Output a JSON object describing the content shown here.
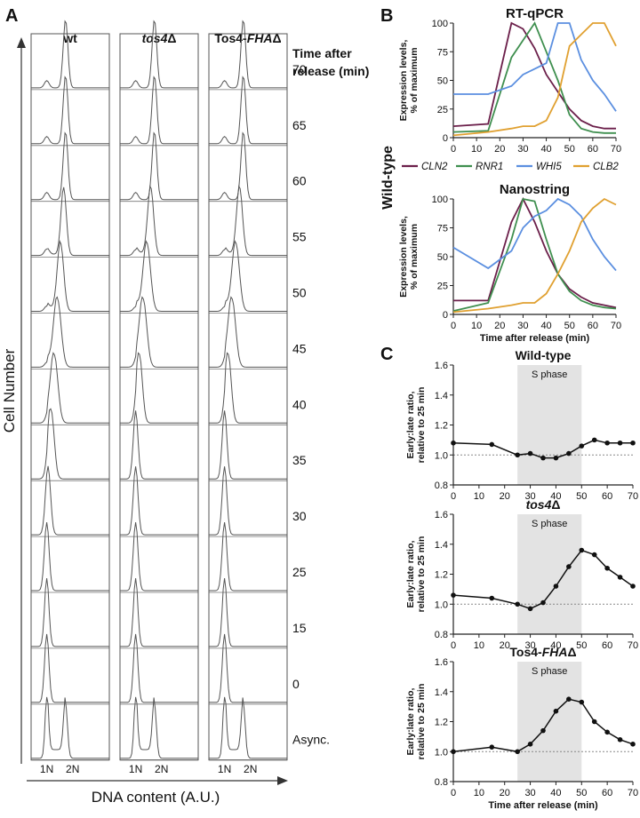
{
  "panels": {
    "A": {
      "letter": "A",
      "columns": [
        {
          "label_plain": "wt",
          "label_italic": "",
          "label_suffix": ""
        },
        {
          "label_plain": "",
          "label_italic": "tos4",
          "label_suffix": "Δ"
        },
        {
          "label_plain": "Tos4-",
          "label_italic": "FHA",
          "label_suffix": "Δ"
        }
      ],
      "time_header": [
        "Time after",
        "release (min)"
      ],
      "timepoints": [
        "70",
        "65",
        "60",
        "55",
        "50",
        "45",
        "40",
        "35",
        "30",
        "25",
        "15",
        "0",
        "Async."
      ],
      "ylabel": "Cell Number",
      "xlabel": "DNA content (A.U.)",
      "tick_1n": "1N",
      "tick_2n": "2N"
    },
    "B": {
      "letter": "B",
      "side_label": "Wild-type",
      "legend": [
        {
          "name": "CLN2",
          "color": "#6b1f4a"
        },
        {
          "name": "RNR1",
          "color": "#3f8f4f"
        },
        {
          "name": "WHI5",
          "color": "#5b8fe0"
        },
        {
          "name": "CLB2",
          "color": "#e0a030"
        }
      ]
    },
    "C": {
      "letter": "C",
      "shade_label": "S phase"
    }
  },
  "chart_data": [
    {
      "type": "line",
      "title": "RT-qPCR",
      "ylabel": "Expression levels, % of maximum",
      "xlabel": "",
      "xlim": [
        0,
        70
      ],
      "ylim": [
        0,
        100
      ],
      "xticks": [
        0,
        10,
        20,
        30,
        40,
        50,
        60,
        70
      ],
      "yticks": [
        0,
        25,
        50,
        75,
        100
      ],
      "x": [
        0,
        15,
        25,
        30,
        35,
        40,
        45,
        50,
        55,
        60,
        65,
        70
      ],
      "series": [
        {
          "name": "CLN2",
          "color": "#6b1f4a",
          "values": [
            10,
            12,
            100,
            95,
            78,
            55,
            40,
            25,
            15,
            10,
            8,
            8
          ]
        },
        {
          "name": "RNR1",
          "color": "#3f8f4f",
          "values": [
            5,
            6,
            70,
            85,
            100,
            75,
            50,
            20,
            8,
            5,
            4,
            4
          ]
        },
        {
          "name": "WHI5",
          "color": "#5b8fe0",
          "values": [
            38,
            38,
            45,
            55,
            60,
            65,
            100,
            100,
            68,
            50,
            38,
            23
          ]
        },
        {
          "name": "CLB2",
          "color": "#e0a030",
          "values": [
            2,
            5,
            8,
            10,
            10,
            15,
            35,
            80,
            90,
            100,
            100,
            80
          ]
        }
      ]
    },
    {
      "type": "line",
      "title": "Nanostring",
      "ylabel": "Expression levels, % of maximum",
      "xlabel": "Time after release (min)",
      "xlim": [
        0,
        70
      ],
      "ylim": [
        0,
        100
      ],
      "xticks": [
        0,
        10,
        20,
        30,
        40,
        50,
        60,
        70
      ],
      "yticks": [
        0,
        25,
        50,
        75,
        100
      ],
      "x": [
        0,
        15,
        25,
        30,
        35,
        40,
        45,
        50,
        55,
        60,
        65,
        70
      ],
      "series": [
        {
          "name": "CLN2",
          "color": "#6b1f4a",
          "values": [
            12,
            12,
            80,
            100,
            80,
            55,
            35,
            22,
            15,
            10,
            8,
            6
          ]
        },
        {
          "name": "RNR1",
          "color": "#3f8f4f",
          "values": [
            3,
            10,
            65,
            100,
            98,
            65,
            35,
            20,
            12,
            8,
            6,
            5
          ]
        },
        {
          "name": "WHI5",
          "color": "#5b8fe0",
          "values": [
            58,
            40,
            55,
            75,
            85,
            90,
            100,
            95,
            85,
            65,
            50,
            38
          ]
        },
        {
          "name": "CLB2",
          "color": "#e0a030",
          "values": [
            2,
            5,
            8,
            10,
            10,
            18,
            35,
            55,
            80,
            92,
            100,
            95
          ]
        }
      ]
    },
    {
      "type": "line",
      "title": "Wild-type",
      "ylabel": "Early:late ratio, relative to 25 min",
      "xlabel": "",
      "xlim": [
        0,
        70
      ],
      "ylim": [
        0.8,
        1.6
      ],
      "xticks": [
        0,
        10,
        20,
        30,
        40,
        50,
        60,
        70
      ],
      "yticks": [
        0.8,
        1.0,
        1.2,
        1.4,
        1.6
      ],
      "shade": [
        25,
        50
      ],
      "reference": 1.0,
      "x": [
        0,
        15,
        25,
        30,
        35,
        40,
        45,
        50,
        55,
        60,
        65,
        70
      ],
      "series": [
        {
          "values": [
            1.08,
            1.07,
            1.0,
            1.01,
            0.98,
            0.98,
            1.01,
            1.06,
            1.1,
            1.08,
            1.08,
            1.08
          ]
        }
      ]
    },
    {
      "type": "line",
      "title_italic": "tos4",
      "title_suffix": "Δ",
      "ylabel": "Early:late ratio, relative to 25 min",
      "xlabel": "",
      "xlim": [
        0,
        70
      ],
      "ylim": [
        0.8,
        1.6
      ],
      "xticks": [
        0,
        10,
        20,
        30,
        40,
        50,
        60,
        70
      ],
      "yticks": [
        0.8,
        1.0,
        1.2,
        1.4,
        1.6
      ],
      "shade": [
        25,
        50
      ],
      "reference": 1.0,
      "x": [
        0,
        15,
        25,
        30,
        35,
        40,
        45,
        50,
        55,
        60,
        65,
        70
      ],
      "series": [
        {
          "values": [
            1.06,
            1.04,
            1.0,
            0.97,
            1.01,
            1.12,
            1.25,
            1.36,
            1.33,
            1.24,
            1.18,
            1.12
          ]
        }
      ]
    },
    {
      "type": "line",
      "title_plain": "Tos4-",
      "title_italic": "FHA",
      "title_suffix": "Δ",
      "ylabel": "Early:late ratio, relative to 25 min",
      "xlabel": "Time after release (min)",
      "xlim": [
        0,
        70
      ],
      "ylim": [
        0.8,
        1.6
      ],
      "xticks": [
        0,
        10,
        20,
        30,
        40,
        50,
        60,
        70
      ],
      "yticks": [
        0.8,
        1.0,
        1.2,
        1.4,
        1.6
      ],
      "shade": [
        25,
        50
      ],
      "reference": 1.0,
      "x": [
        0,
        15,
        25,
        30,
        35,
        40,
        45,
        50,
        55,
        60,
        65,
        70
      ],
      "series": [
        {
          "values": [
            1.0,
            1.03,
            1.0,
            1.05,
            1.14,
            1.27,
            1.35,
            1.33,
            1.2,
            1.13,
            1.08,
            1.05
          ]
        }
      ]
    }
  ]
}
